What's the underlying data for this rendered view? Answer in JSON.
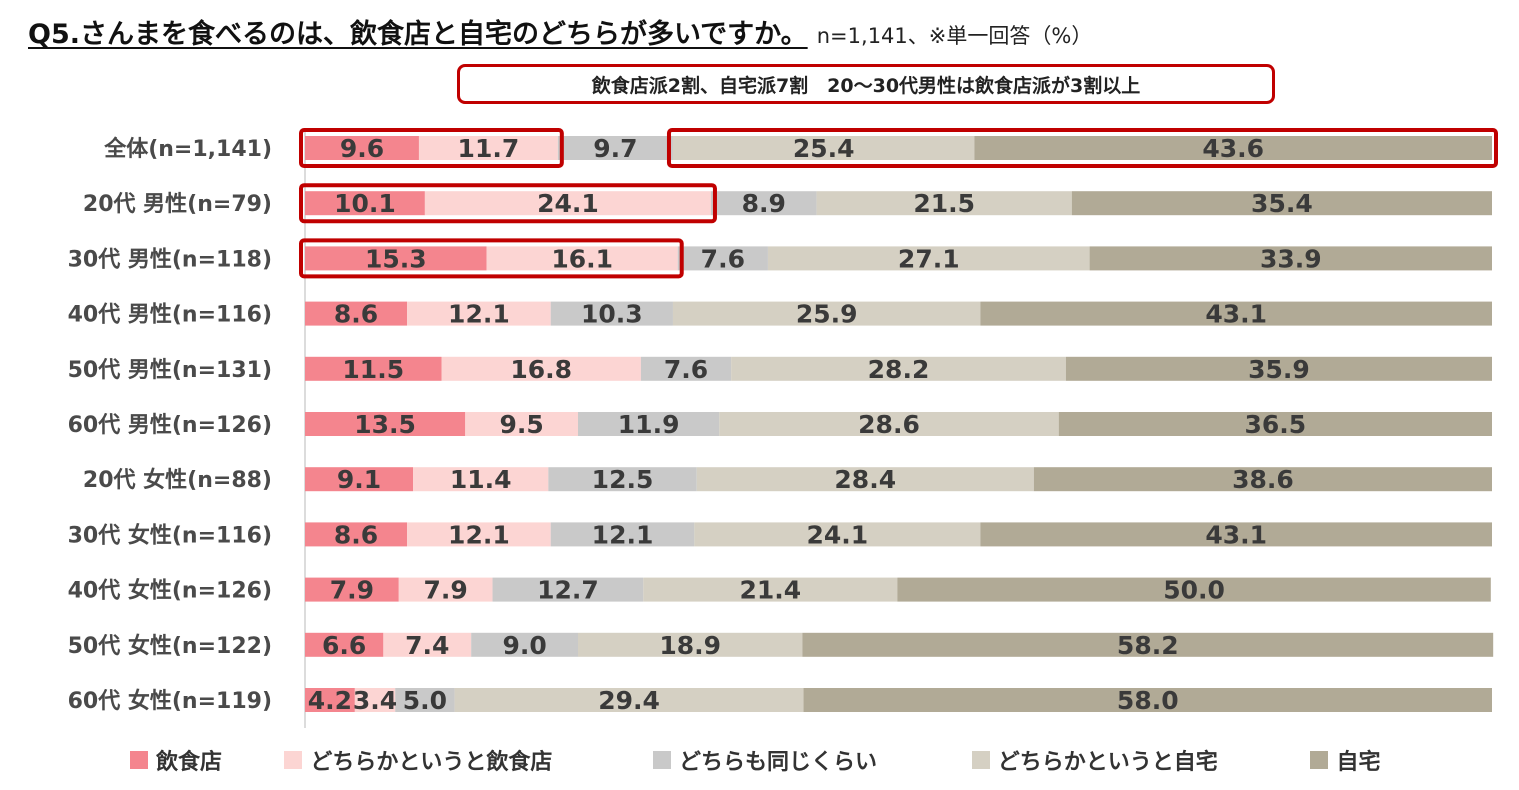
{
  "title": "Q5.さんまを食べるのは、飲食店と自宅のどちらが多いですか。",
  "note": "n=1,141、※単一回答（%）",
  "headline": "飲食店派2割、自宅派7割　20～30代男性は飲食店派が3割以上",
  "chart_data": {
    "type": "bar",
    "orientation": "horizontal",
    "stacked": true,
    "percent_stacked": true,
    "unit": "%",
    "categories": [
      "全体(n=1,141)",
      "20代 男性(n=79)",
      "30代 男性(n=118)",
      "40代 男性(n=116)",
      "50代 男性(n=131)",
      "60代 男性(n=126)",
      "20代 女性(n=88)",
      "30代 女性(n=116)",
      "40代 女性(n=126)",
      "50代 女性(n=122)",
      "60代 女性(n=119)"
    ],
    "series": [
      {
        "name": "飲食店",
        "color": "#f4858e",
        "values": [
          9.6,
          10.1,
          15.3,
          8.6,
          11.5,
          13.5,
          9.1,
          8.6,
          7.9,
          6.6,
          4.2
        ]
      },
      {
        "name": "どちらかというと飲食店",
        "color": "#fcd5d3",
        "values": [
          11.7,
          24.1,
          16.1,
          12.1,
          16.8,
          9.5,
          11.4,
          12.1,
          7.9,
          7.4,
          3.4
        ]
      },
      {
        "name": "どちらも同じくらい",
        "color": "#c9c9c9",
        "values": [
          9.7,
          8.9,
          7.6,
          10.3,
          7.6,
          11.9,
          12.5,
          12.1,
          12.7,
          9.0,
          5.0
        ]
      },
      {
        "name": "どちらかというと自宅",
        "color": "#d5d0c3",
        "values": [
          25.4,
          21.5,
          27.1,
          25.9,
          28.2,
          28.6,
          28.4,
          24.1,
          21.4,
          18.9,
          29.4
        ]
      },
      {
        "name": "自宅",
        "color": "#b1aa96",
        "values": [
          43.6,
          35.4,
          33.9,
          43.1,
          35.9,
          36.5,
          38.6,
          43.1,
          50.0,
          58.2,
          58.0
        ]
      }
    ],
    "xlim": [
      0,
      100
    ],
    "legend_position": "bottom",
    "highlight_color": "#c00000",
    "highlights": [
      {
        "category_index": 0,
        "series_from": 0,
        "series_to": 1
      },
      {
        "category_index": 0,
        "series_from": 3,
        "series_to": 4
      },
      {
        "category_index": 1,
        "series_from": 0,
        "series_to": 1
      },
      {
        "category_index": 2,
        "series_from": 0,
        "series_to": 1
      }
    ]
  }
}
